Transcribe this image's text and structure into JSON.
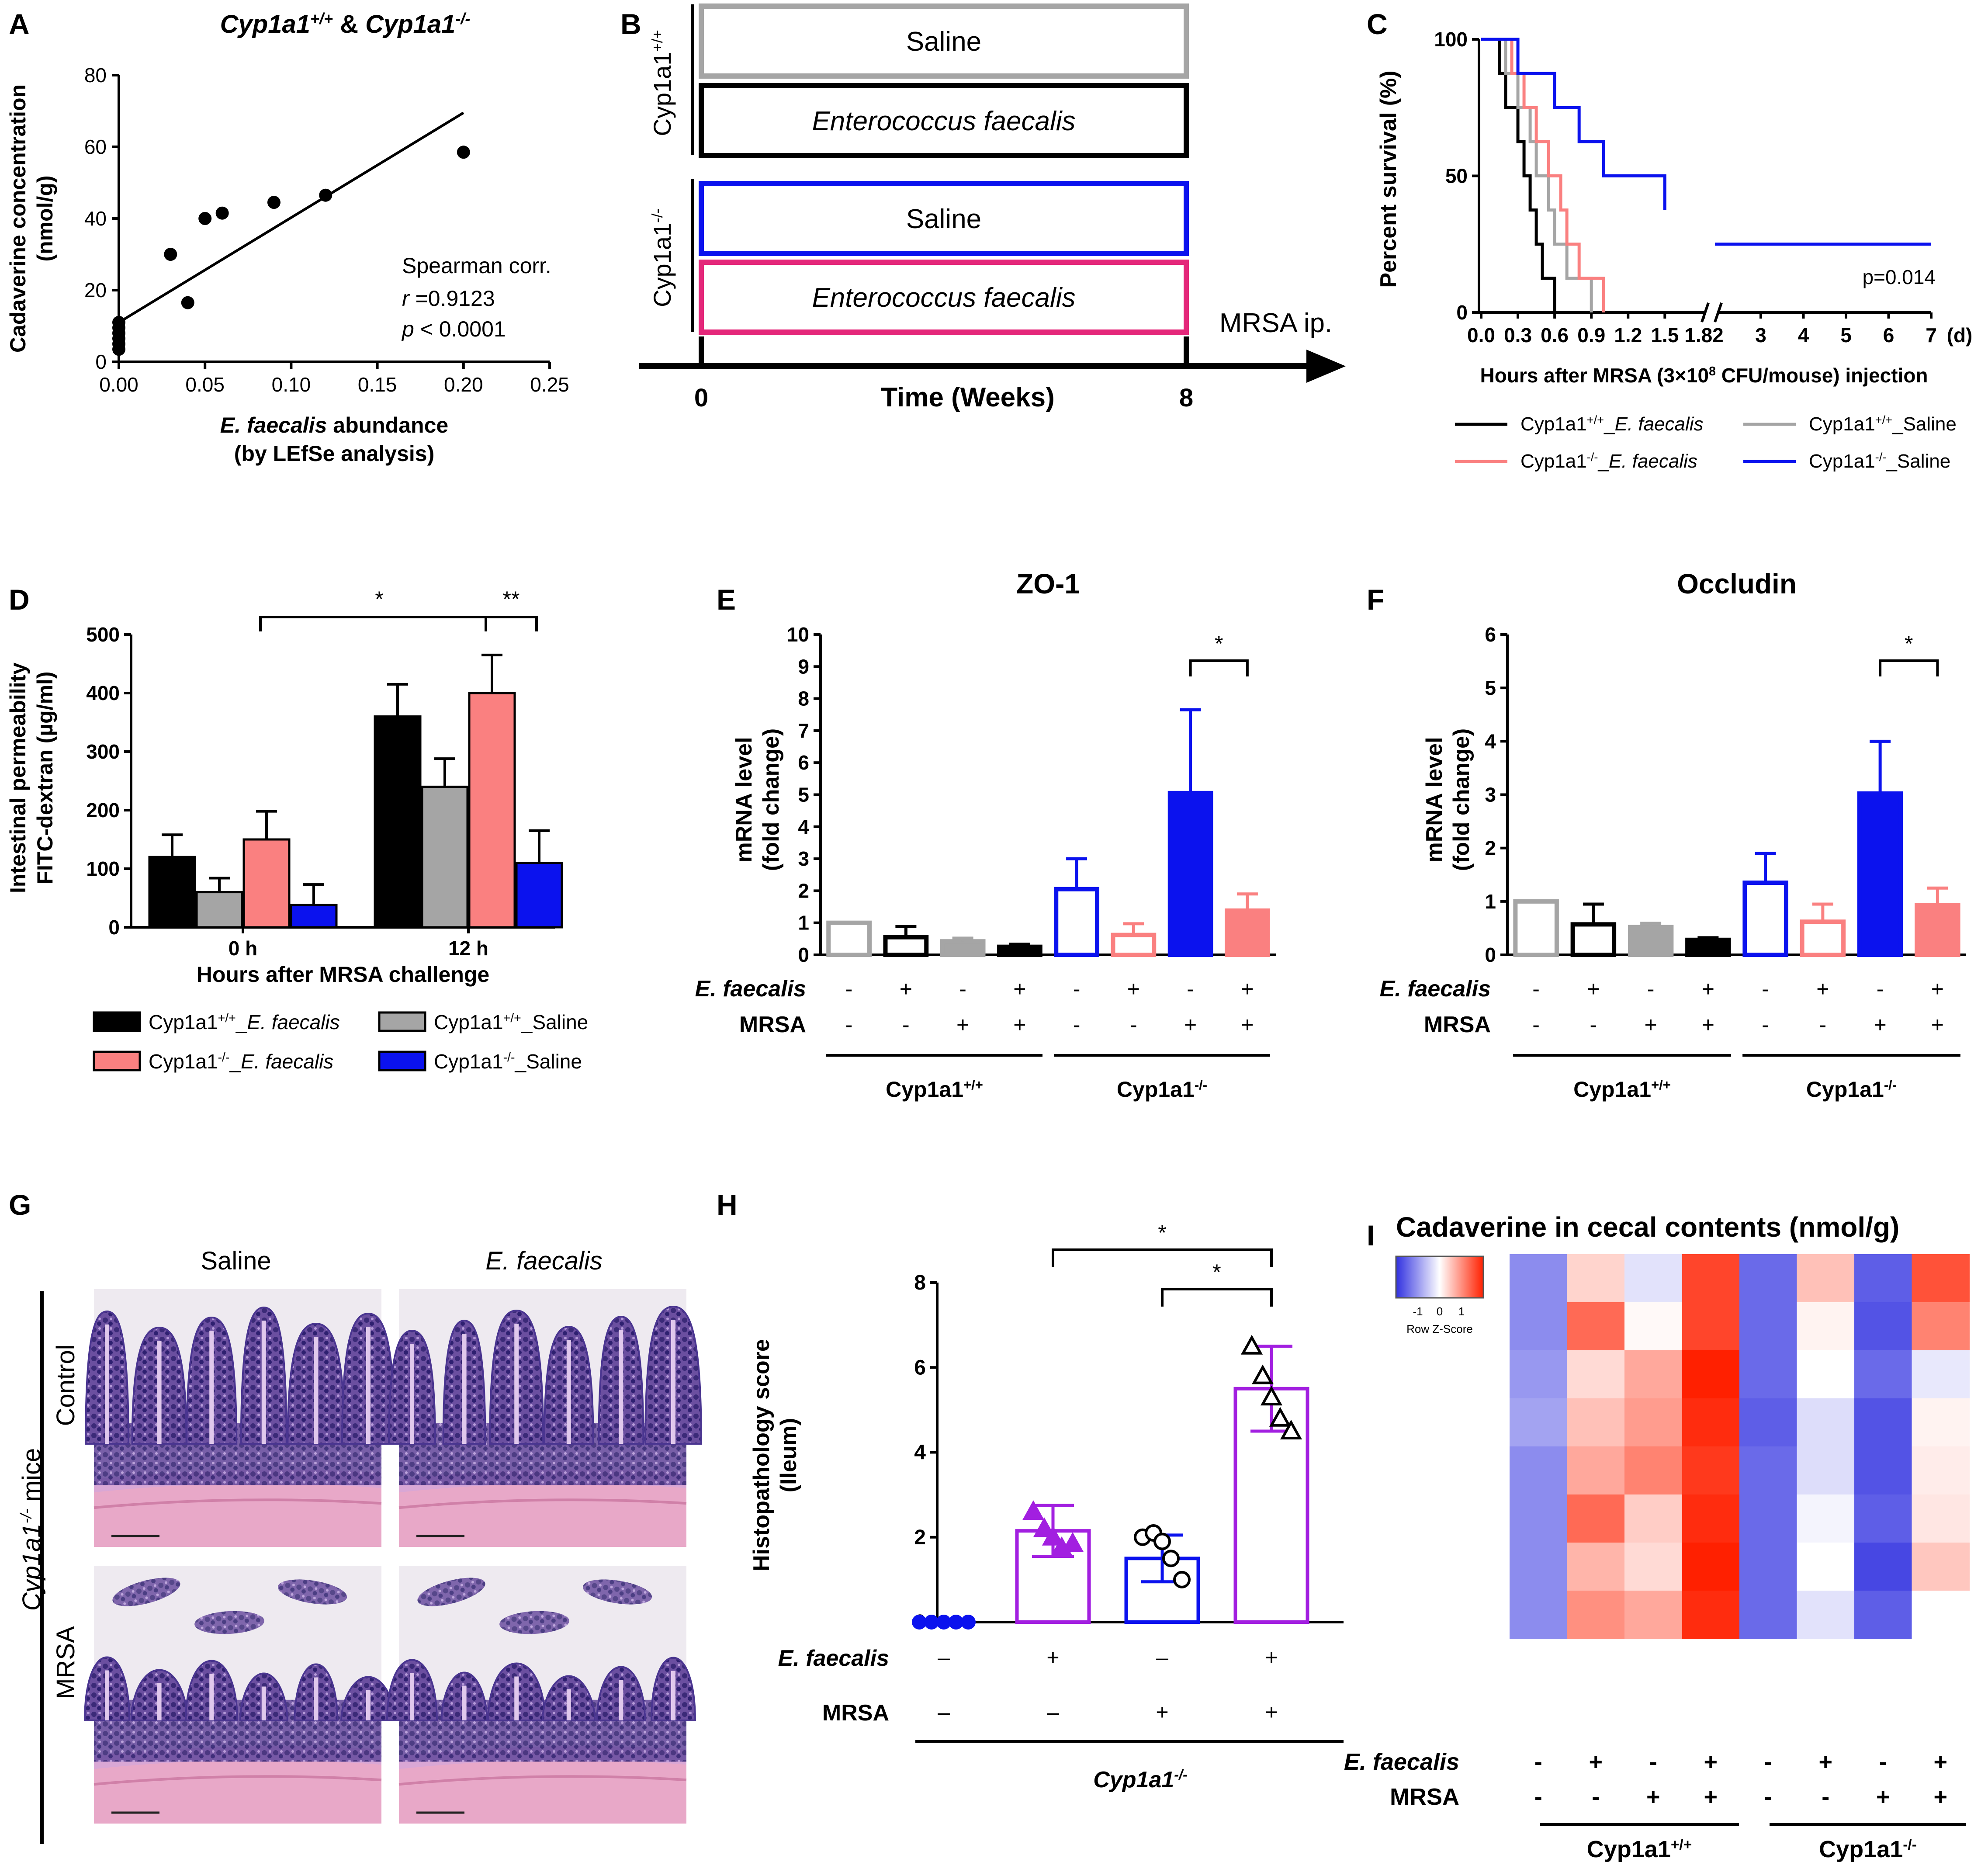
{
  "palette": {
    "black": "#000000",
    "gray": "#a5a5a5",
    "pink": "#fa8080",
    "blue": "#0b12ee",
    "purple": "#a21fe0",
    "hm_low": "#3030e0",
    "hm_mid": "#ffffff",
    "hm_high": "#ff2000"
  },
  "panels": {
    "A": {
      "letter": "A"
    },
    "B": {
      "letter": "B"
    },
    "C": {
      "letter": "C"
    },
    "D": {
      "letter": "D"
    },
    "E": {
      "letter": "E"
    },
    "F": {
      "letter": "F"
    },
    "G": {
      "letter": "G"
    },
    "H": {
      "letter": "H"
    },
    "I": {
      "letter": "I"
    }
  },
  "chart_data": [
    {
      "id": "A",
      "type": "scatter",
      "title": "Cyp1a1+/+ & Cyp1a1-/-",
      "xlabel_line1": "E. faecalis abundance",
      "xlabel_line2": "(by LEfSe analysis)",
      "ylabel_line1": "Cadaverine concentration",
      "ylabel_line2": "(nmol/g)",
      "xlim": [
        0,
        0.25
      ],
      "ylim": [
        0,
        80
      ],
      "xticks": [
        "0.00",
        "0.05",
        "0.10",
        "0.15",
        "0.20",
        "0.25"
      ],
      "yticks": [
        "0",
        "20",
        "40",
        "60",
        "80"
      ],
      "points": [
        {
          "x": 0.0,
          "y": 3.5
        },
        {
          "x": 0.0,
          "y": 5
        },
        {
          "x": 0.0,
          "y": 6.5
        },
        {
          "x": 0.0,
          "y": 8
        },
        {
          "x": 0.0,
          "y": 9.5
        },
        {
          "x": 0.0,
          "y": 11
        },
        {
          "x": 0.03,
          "y": 30
        },
        {
          "x": 0.04,
          "y": 16.5
        },
        {
          "x": 0.05,
          "y": 40
        },
        {
          "x": 0.06,
          "y": 41.5
        },
        {
          "x": 0.09,
          "y": 44.5
        },
        {
          "x": 0.12,
          "y": 46.5
        },
        {
          "x": 0.2,
          "y": 58.5
        }
      ],
      "fit_line": {
        "x": [
          0,
          0.2
        ],
        "y": [
          11,
          69.5
        ]
      },
      "stat_label": "Spearman corr.",
      "stat_r": "r =0.9123",
      "stat_p": "p < 0.0001"
    },
    {
      "id": "B",
      "type": "diagram",
      "group1": "Cyp1a1+/+",
      "group2": "Cyp1a1-/-",
      "boxes": [
        {
          "label": "Saline",
          "italic": false,
          "color": "#a5a5a5"
        },
        {
          "label": "Enterococcus faecalis",
          "italic": true,
          "color": "#000000"
        },
        {
          "label": "Saline",
          "italic": false,
          "color": "#0b12ee"
        },
        {
          "label": "Enterococcus faecalis",
          "italic": true,
          "color": "#e4277a"
        }
      ],
      "timeline_start": "0",
      "timeline_end": "8",
      "axis_label": "Time (Weeks)",
      "event_label": "MRSA ip."
    },
    {
      "id": "C",
      "type": "line",
      "ylabel": "Percent survival (%)",
      "xlabel": "Hours after MRSA (3×10⁸ CFU/mouse) injection",
      "unit_d": "(d)",
      "p_value": "p=0.014",
      "yticks": [
        "0",
        "50",
        "100"
      ],
      "xticks_left": [
        "0.0",
        "0.3",
        "0.6",
        "0.9",
        "1.2",
        "1.5",
        "1.82"
      ],
      "xticks_right": [
        "3",
        "4",
        "5",
        "6",
        "7"
      ],
      "series": [
        {
          "name": "Cyp1a1+/+_E. faecalis",
          "color": "#000000",
          "steps": [
            [
              0.0,
              100
            ],
            [
              0.15,
              87.5
            ],
            [
              0.2,
              75
            ],
            [
              0.3,
              62.5
            ],
            [
              0.35,
              50
            ],
            [
              0.4,
              37.5
            ],
            [
              0.45,
              25
            ],
            [
              0.5,
              12.5
            ],
            [
              0.6,
              0
            ]
          ]
        },
        {
          "name": "Cyp1a1+/+_Saline",
          "color": "#a5a5a5",
          "steps": [
            [
              0.0,
              100
            ],
            [
              0.2,
              87.5
            ],
            [
              0.3,
              75
            ],
            [
              0.4,
              62.5
            ],
            [
              0.45,
              50
            ],
            [
              0.55,
              37.5
            ],
            [
              0.6,
              25
            ],
            [
              0.7,
              12.5
            ],
            [
              0.9,
              0
            ]
          ]
        },
        {
          "name": "Cyp1a1-/-_E. faecalis",
          "color": "#fa8080",
          "steps": [
            [
              0.0,
              100
            ],
            [
              0.25,
              87.5
            ],
            [
              0.35,
              75
            ],
            [
              0.45,
              62.5
            ],
            [
              0.55,
              50
            ],
            [
              0.65,
              37.5
            ],
            [
              0.7,
              25
            ],
            [
              0.8,
              12.5
            ],
            [
              1.0,
              0
            ]
          ]
        },
        {
          "name": "Cyp1a1-/-_Saline",
          "color": "#0b12ee",
          "steps": [
            [
              0.0,
              100
            ],
            [
              0.3,
              87.5
            ],
            [
              0.6,
              75
            ],
            [
              0.8,
              62.5
            ],
            [
              1.0,
              50
            ],
            [
              1.5,
              37.5
            ],
            [
              3.0,
              25
            ],
            [
              7.0,
              25
            ]
          ]
        }
      ],
      "legend": [
        {
          "prefix": "Cyp1a1",
          "sup": "+/+",
          "suffix": "_",
          "ital": "E. faecalis",
          "color": "#000000"
        },
        {
          "prefix": "Cyp1a1",
          "sup": "+/+",
          "suffix": "_Saline",
          "ital": "",
          "color": "#a5a5a5"
        },
        {
          "prefix": "Cyp1a1",
          "sup": "-/-",
          "suffix": "_",
          "ital": "E. faecalis",
          "color": "#fa8080"
        },
        {
          "prefix": "Cyp1a1",
          "sup": "-/-",
          "suffix": "_Saline",
          "ital": "",
          "color": "#0b12ee"
        }
      ]
    },
    {
      "id": "D",
      "type": "bar",
      "ylabel_line1": "Intestinal permeability",
      "ylabel_line2": "FITC-dextran (µg/ml)",
      "xlabel": "Hours after MRSA challenge",
      "categories": [
        "0 h",
        "12 h"
      ],
      "ylim": [
        0,
        500
      ],
      "yticks": [
        "0",
        "100",
        "200",
        "300",
        "400",
        "500"
      ],
      "series": [
        {
          "name": "Cyp1a1+/+_E. faecalis",
          "color": "#000000",
          "values": [
            120,
            360
          ],
          "err": [
            38,
            55
          ]
        },
        {
          "name": "Cyp1a1+/+_Saline",
          "color": "#a5a5a5",
          "values": [
            60,
            240
          ],
          "err": [
            24,
            48
          ]
        },
        {
          "name": "Cyp1a1-/-_E. faecalis",
          "color": "#fa8080",
          "values": [
            150,
            400
          ],
          "err": [
            48,
            65
          ]
        },
        {
          "name": "Cyp1a1-/-_Saline",
          "color": "#0b12ee",
          "values": [
            38,
            110
          ],
          "err": [
            35,
            55
          ]
        }
      ],
      "sig1": "*",
      "sig2": "**"
    },
    {
      "id": "E",
      "type": "bar",
      "title": "ZO-1",
      "ylabel_line1": "mRNA level",
      "ylabel_line2": "(fold change)",
      "ylim": [
        0,
        10
      ],
      "yticks": [
        "0",
        "1",
        "2",
        "3",
        "4",
        "5",
        "6",
        "7",
        "8",
        "9",
        "10"
      ],
      "values": [
        1.0,
        0.55,
        0.42,
        0.25,
        2.05,
        0.62,
        5.05,
        1.38
      ],
      "err": [
        0,
        0.33,
        0.1,
        0.08,
        0.95,
        0.35,
        2.6,
        0.52
      ],
      "colors": [
        "#a5a5a5",
        "#000000",
        "#a5a5a5",
        "#000000",
        "#0b12ee",
        "#fa8080",
        "#0b12ee",
        "#fa8080"
      ],
      "filled": [
        false,
        false,
        true,
        true,
        false,
        false,
        true,
        true
      ],
      "row1_label": "E. faecalis",
      "row2_label": "MRSA",
      "row1": [
        "-",
        "+",
        "-",
        "+",
        "-",
        "+",
        "-",
        "+"
      ],
      "row2": [
        "-",
        "-",
        "+",
        "+",
        "-",
        "-",
        "+",
        "+"
      ],
      "group1": "Cyp1a1+/+",
      "group2": "Cyp1a1-/-",
      "sig": "*"
    },
    {
      "id": "F",
      "type": "bar",
      "title": "Occludin",
      "ylabel_line1": "mRNA level",
      "ylabel_line2": "(fold change)",
      "ylim": [
        0,
        6
      ],
      "yticks": [
        "0",
        "1",
        "2",
        "3",
        "4",
        "5",
        "6"
      ],
      "values": [
        1.0,
        0.57,
        0.52,
        0.28,
        1.35,
        0.62,
        3.02,
        0.93
      ],
      "err": [
        0,
        0.38,
        0.07,
        0.04,
        0.55,
        0.33,
        0.98,
        0.32
      ],
      "colors": [
        "#a5a5a5",
        "#000000",
        "#a5a5a5",
        "#000000",
        "#0b12ee",
        "#fa8080",
        "#0b12ee",
        "#fa8080"
      ],
      "filled": [
        false,
        false,
        true,
        true,
        false,
        false,
        true,
        true
      ],
      "row1_label": "E. faecalis",
      "row2_label": "MRSA",
      "row1": [
        "-",
        "+",
        "-",
        "+",
        "-",
        "+",
        "-",
        "+"
      ],
      "row2": [
        "-",
        "-",
        "+",
        "+",
        "-",
        "-",
        "+",
        "+"
      ],
      "group1": "Cyp1a1+/+",
      "group2": "Cyp1a1-/-",
      "sig": "*"
    },
    {
      "id": "G",
      "type": "image-grid",
      "col1": "Saline",
      "col2": "E. faecalis",
      "row1": "Control",
      "row2": "MRSA",
      "side_label": "Cyp1a1-/- mice"
    },
    {
      "id": "H",
      "type": "bar",
      "ylabel_line1": "Histopathology score",
      "ylabel_line2": "(Ileum)",
      "ylim": [
        0,
        8
      ],
      "yticks": [
        "0",
        "2",
        "4",
        "6",
        "8"
      ],
      "values": [
        0,
        2.15,
        1.5,
        5.5
      ],
      "err": [
        0,
        0.6,
        0.55,
        1.0
      ],
      "colors": [
        "#0b12ee",
        "#a21fe0",
        "#0b12ee",
        "#a21fe0"
      ],
      "markers": [
        "circle",
        "triangle",
        "circle",
        "triangle"
      ],
      "filled": [
        true,
        true,
        false,
        false
      ],
      "points": [
        [
          0,
          0,
          0,
          0,
          0
        ],
        [
          2.6,
          2.2,
          2.0,
          1.75,
          1.85
        ],
        [
          2.0,
          2.1,
          1.9,
          1.5,
          1.0
        ],
        [
          6.5,
          5.8,
          5.3,
          4.8,
          4.5
        ]
      ],
      "row1_label": "E.  faecalis",
      "row2_label": "MRSA",
      "row1": [
        "–",
        "+",
        "–",
        "+"
      ],
      "row2": [
        "–",
        "–",
        "+",
        "+"
      ],
      "group": "Cyp1a1-/-",
      "sig": "*"
    },
    {
      "id": "I",
      "type": "heatmap",
      "title": "Cadaverine in cecal contents (nmol/g)",
      "scale_label": "Row Z-Score",
      "scale_ticks": [
        "-1",
        "0",
        "1"
      ],
      "z": [
        [
          -1.0,
          0.35,
          -0.25,
          1.5,
          -1.3,
          0.5,
          -1.4,
          1.4
        ],
        [
          -1.0,
          1.2,
          0.05,
          1.5,
          -1.3,
          0.1,
          -1.5,
          1.0
        ],
        [
          -0.9,
          0.3,
          0.7,
          1.8,
          -1.3,
          0.0,
          -1.3,
          -0.2
        ],
        [
          -0.8,
          0.5,
          0.8,
          1.7,
          -1.4,
          -0.3,
          -1.5,
          0.1
        ],
        [
          -1.0,
          0.7,
          1.0,
          1.6,
          -1.3,
          -0.3,
          -1.5,
          0.15
        ],
        [
          -1.0,
          1.2,
          0.4,
          1.7,
          -1.3,
          -0.1,
          -1.4,
          0.2
        ],
        [
          -1.0,
          0.6,
          0.3,
          1.8,
          -1.3,
          0.0,
          -1.6,
          0.45
        ],
        [
          -1.0,
          0.9,
          0.7,
          1.7,
          -1.3,
          -0.25,
          -1.4,
          0.0
        ]
      ],
      "row1_label": "E. faecalis",
      "row2_label": "MRSA",
      "row1": [
        "-",
        "+",
        "-",
        "+",
        "-",
        "+",
        "-",
        "+"
      ],
      "row2": [
        "-",
        "-",
        "+",
        "+",
        "-",
        "-",
        "+",
        "+"
      ],
      "group1": "Cyp1a1+/+",
      "group2": "Cyp1a1-/-"
    }
  ]
}
